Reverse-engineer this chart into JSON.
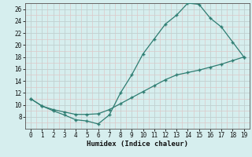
{
  "xlabel": "Humidex (Indice chaleur)",
  "background_color": "#d6eeee",
  "grid_color": "#c8d8d8",
  "line_color": "#2e7d72",
  "curve1_x": [
    0,
    1,
    2,
    3,
    4,
    5,
    6,
    7,
    8,
    9,
    10,
    11,
    12,
    13,
    14,
    15,
    16,
    17,
    18,
    19
  ],
  "curve1_y": [
    11,
    9.8,
    9.0,
    8.3,
    7.5,
    7.3,
    6.8,
    8.3,
    12.0,
    15.0,
    18.5,
    21.0,
    23.5,
    25.0,
    27.0,
    26.8,
    24.5,
    23.0,
    20.5,
    18.0
  ],
  "curve2_x": [
    0,
    1,
    2,
    3,
    4,
    5,
    6,
    7,
    8,
    9,
    10,
    11,
    12,
    13,
    14,
    15,
    16,
    17,
    18,
    19
  ],
  "curve2_y": [
    11,
    9.8,
    9.2,
    8.8,
    8.4,
    8.4,
    8.5,
    9.2,
    10.2,
    11.2,
    12.2,
    13.2,
    14.2,
    15.0,
    15.4,
    15.8,
    16.3,
    16.8,
    17.4,
    18.0
  ],
  "ylim": [
    6,
    27
  ],
  "xlim": [
    -0.5,
    19.5
  ],
  "yticks": [
    8,
    10,
    12,
    14,
    16,
    18,
    20,
    22,
    24,
    26
  ],
  "xticks": [
    0,
    1,
    2,
    3,
    4,
    5,
    6,
    7,
    8,
    9,
    10,
    11,
    12,
    13,
    14,
    15,
    16,
    17,
    18,
    19
  ],
  "xlabel_fontsize": 6.5,
  "tick_fontsize": 5.5
}
